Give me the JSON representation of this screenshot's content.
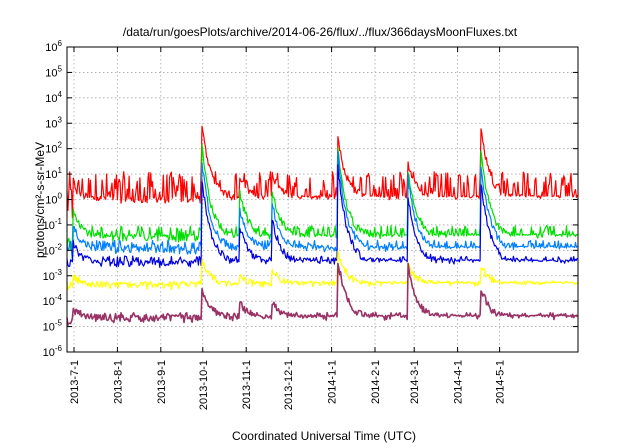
{
  "chart_data": {
    "type": "line",
    "title": "/data/run/goesPlots/archive/2014-06-26/flux/../flux/366daysMoonFluxes.txt",
    "xlabel": "Coordinated Universal Time (UTC)",
    "ylabel": "protons/cm²-s-sr-MeV",
    "yscale": "log",
    "ylim": [
      1e-06,
      1000000.0
    ],
    "yticks": [
      {
        "exp": "-6"
      },
      {
        "exp": "-5"
      },
      {
        "exp": "-4"
      },
      {
        "exp": "-3"
      },
      {
        "exp": "-2"
      },
      {
        "exp": "-1"
      },
      {
        "exp": "0"
      },
      {
        "exp": "1"
      },
      {
        "exp": "2"
      },
      {
        "exp": "3"
      },
      {
        "exp": "4"
      },
      {
        "exp": "5"
      },
      {
        "exp": "6"
      }
    ],
    "xlim": [
      "2013-06-26",
      "2014-06-26"
    ],
    "xticks": [
      "2013-7-1",
      "2013-8-1",
      "2013-9-1",
      "2013-10-1",
      "2013-11-1",
      "2013-12-1",
      "2014-1-1",
      "2014-2-1",
      "2014-3-1",
      "2014-4-1",
      "2014-5-1"
    ],
    "xtick_dates": [
      "2013-07-01",
      "2013-08-01",
      "2013-09-01",
      "2013-10-01",
      "2013-11-01",
      "2013-12-01",
      "2014-01-01",
      "2014-02-01",
      "2014-03-01",
      "2014-04-01",
      "2014-05-01"
    ],
    "grid": true,
    "events": [
      "2013-07-01",
      "2013-10-01",
      "2013-10-28",
      "2013-11-20",
      "2014-01-06",
      "2014-02-25",
      "2014-04-18"
    ],
    "series": [
      {
        "color": "#ff0000",
        "baseline": 1.0,
        "noise": 1.1,
        "peaks": [
          3,
          1100,
          8,
          12,
          300,
          30,
          1000
        ]
      },
      {
        "color": "#00e000",
        "baseline": 0.03,
        "noise": 0.5,
        "peaks": [
          0.5,
          150,
          2,
          3,
          150,
          20,
          150
        ]
      },
      {
        "color": "#0080ff",
        "baseline": 0.01,
        "noise": 0.4,
        "peaks": [
          0.1,
          40,
          0.5,
          0.8,
          80,
          10,
          40
        ]
      },
      {
        "color": "#0000e0",
        "baseline": 0.003,
        "noise": 0.3,
        "peaks": [
          0.02,
          8,
          0.1,
          0.2,
          30,
          2,
          8
        ]
      },
      {
        "color": "#ffff00",
        "baseline": 0.0004,
        "noise": 0.2,
        "peaks": [
          0.001,
          0.005,
          0.001,
          0.002,
          0.01,
          0.003,
          0.003
        ]
      },
      {
        "color": "#993366",
        "baseline": 2e-05,
        "noise": 0.25,
        "peaks": [
          5e-05,
          0.0003,
          0.0001,
          0.0001,
          0.005,
          0.003,
          0.0004
        ]
      }
    ]
  }
}
